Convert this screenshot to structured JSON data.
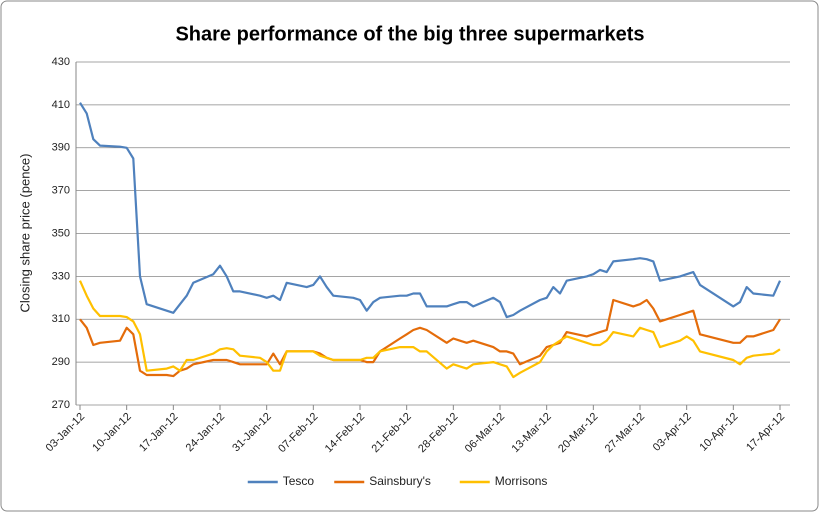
{
  "chart_data": {
    "type": "line",
    "title": "Share performance of the big three supermarkets",
    "y_label": "Closing share price (pence)",
    "x": [
      "2012-01-03",
      "2012-01-04",
      "2012-01-05",
      "2012-01-06",
      "2012-01-09",
      "2012-01-10",
      "2012-01-11",
      "2012-01-12",
      "2012-01-13",
      "2012-01-16",
      "2012-01-17",
      "2012-01-18",
      "2012-01-19",
      "2012-01-20",
      "2012-01-23",
      "2012-01-24",
      "2012-01-25",
      "2012-01-26",
      "2012-01-27",
      "2012-01-30",
      "2012-01-31",
      "2012-02-01",
      "2012-02-02",
      "2012-02-03",
      "2012-02-06",
      "2012-02-07",
      "2012-02-08",
      "2012-02-09",
      "2012-02-10",
      "2012-02-13",
      "2012-02-14",
      "2012-02-15",
      "2012-02-16",
      "2012-02-17",
      "2012-02-20",
      "2012-02-21",
      "2012-02-22",
      "2012-02-23",
      "2012-02-24",
      "2012-02-27",
      "2012-02-28",
      "2012-02-29",
      "2012-03-01",
      "2012-03-02",
      "2012-03-05",
      "2012-03-06",
      "2012-03-07",
      "2012-03-08",
      "2012-03-09",
      "2012-03-12",
      "2012-03-13",
      "2012-03-14",
      "2012-03-15",
      "2012-03-16",
      "2012-03-19",
      "2012-03-20",
      "2012-03-21",
      "2012-03-22",
      "2012-03-23",
      "2012-03-26",
      "2012-03-27",
      "2012-03-28",
      "2012-03-29",
      "2012-03-30",
      "2012-04-02",
      "2012-04-03",
      "2012-04-04",
      "2012-04-05",
      "2012-04-10",
      "2012-04-11",
      "2012-04-12",
      "2012-04-13",
      "2012-04-16",
      "2012-04-17"
    ],
    "series": [
      {
        "name": "Tesco",
        "color": "#4f81bd",
        "values": [
          411,
          406,
          394,
          391,
          390.5,
          390,
          385,
          330,
          317,
          314,
          313,
          317,
          321,
          327,
          331,
          335,
          330,
          323,
          323,
          321,
          320,
          321,
          319,
          327,
          325,
          326,
          330,
          325,
          321,
          320,
          319,
          314,
          318,
          320,
          321,
          321,
          322,
          322,
          316,
          316,
          317,
          318,
          318,
          316,
          320,
          318,
          311,
          312,
          314,
          319,
          320,
          325,
          322,
          328,
          330,
          331,
          333,
          332,
          337,
          338,
          338.5,
          338,
          337,
          328,
          330,
          331,
          332,
          326,
          316,
          318,
          325,
          322,
          321,
          328
        ]
      },
      {
        "name": "Sainsbury's",
        "color": "#e46c0a",
        "values": [
          310,
          306,
          298,
          299,
          300,
          306,
          303,
          286,
          284,
          284,
          283.5,
          286,
          287,
          289,
          291,
          291,
          291,
          290,
          289,
          289,
          289,
          294,
          289,
          295,
          295,
          295,
          294,
          292,
          291,
          291,
          291,
          290,
          290,
          295,
          301,
          303,
          305,
          306,
          305,
          299,
          301,
          300,
          299,
          300,
          297,
          295,
          295,
          294,
          289,
          293,
          297,
          298,
          299,
          304,
          302,
          303,
          304,
          305,
          319,
          316,
          317,
          319,
          315,
          309,
          312,
          313,
          314,
          303,
          299,
          299,
          302,
          302,
          305,
          310
        ]
      },
      {
        "name": "Morrisons",
        "color": "#ffc000",
        "values": [
          328,
          321,
          315,
          311.5,
          311.5,
          311,
          309,
          303,
          286,
          287,
          288,
          286,
          291,
          291,
          294,
          296,
          296.5,
          296,
          293,
          292,
          290,
          286,
          286,
          295,
          295,
          295,
          293,
          292,
          291,
          291,
          291,
          292,
          292,
          295,
          297,
          297,
          297,
          295,
          295,
          287,
          289,
          288,
          287,
          289,
          290,
          289,
          288,
          283,
          285,
          290,
          295,
          298,
          300,
          302,
          299,
          298,
          298,
          300,
          304,
          302,
          306,
          305,
          304,
          297,
          300,
          302,
          300,
          295,
          291,
          289,
          292,
          293,
          294,
          296
        ]
      }
    ],
    "xlim": [
      "2012-01-03",
      "2012-04-17"
    ],
    "xticks": [
      {
        "value": "2012-01-03",
        "label": "03-Jan-12"
      },
      {
        "value": "2012-01-10",
        "label": "10-Jan-12"
      },
      {
        "value": "2012-01-17",
        "label": "17-Jan-12"
      },
      {
        "value": "2012-01-24",
        "label": "24-Jan-12"
      },
      {
        "value": "2012-01-31",
        "label": "31-Jan-12"
      },
      {
        "value": "2012-02-07",
        "label": "07-Feb-12"
      },
      {
        "value": "2012-02-14",
        "label": "14-Feb-12"
      },
      {
        "value": "2012-02-21",
        "label": "21-Feb-12"
      },
      {
        "value": "2012-02-28",
        "label": "28-Feb-12"
      },
      {
        "value": "2012-03-06",
        "label": "06-Mar-12"
      },
      {
        "value": "2012-03-13",
        "label": "13-Mar-12"
      },
      {
        "value": "2012-03-20",
        "label": "20-Mar-12"
      },
      {
        "value": "2012-03-27",
        "label": "27-Mar-12"
      },
      {
        "value": "2012-04-03",
        "label": "03-Apr-12"
      },
      {
        "value": "2012-04-10",
        "label": "10-Apr-12"
      },
      {
        "value": "2012-04-17",
        "label": "17-Apr-12"
      }
    ],
    "ylim": [
      270,
      430
    ],
    "yticks": [
      270,
      290,
      310,
      330,
      350,
      370,
      390,
      410,
      430
    ],
    "grid": true,
    "legend": "bottom"
  }
}
